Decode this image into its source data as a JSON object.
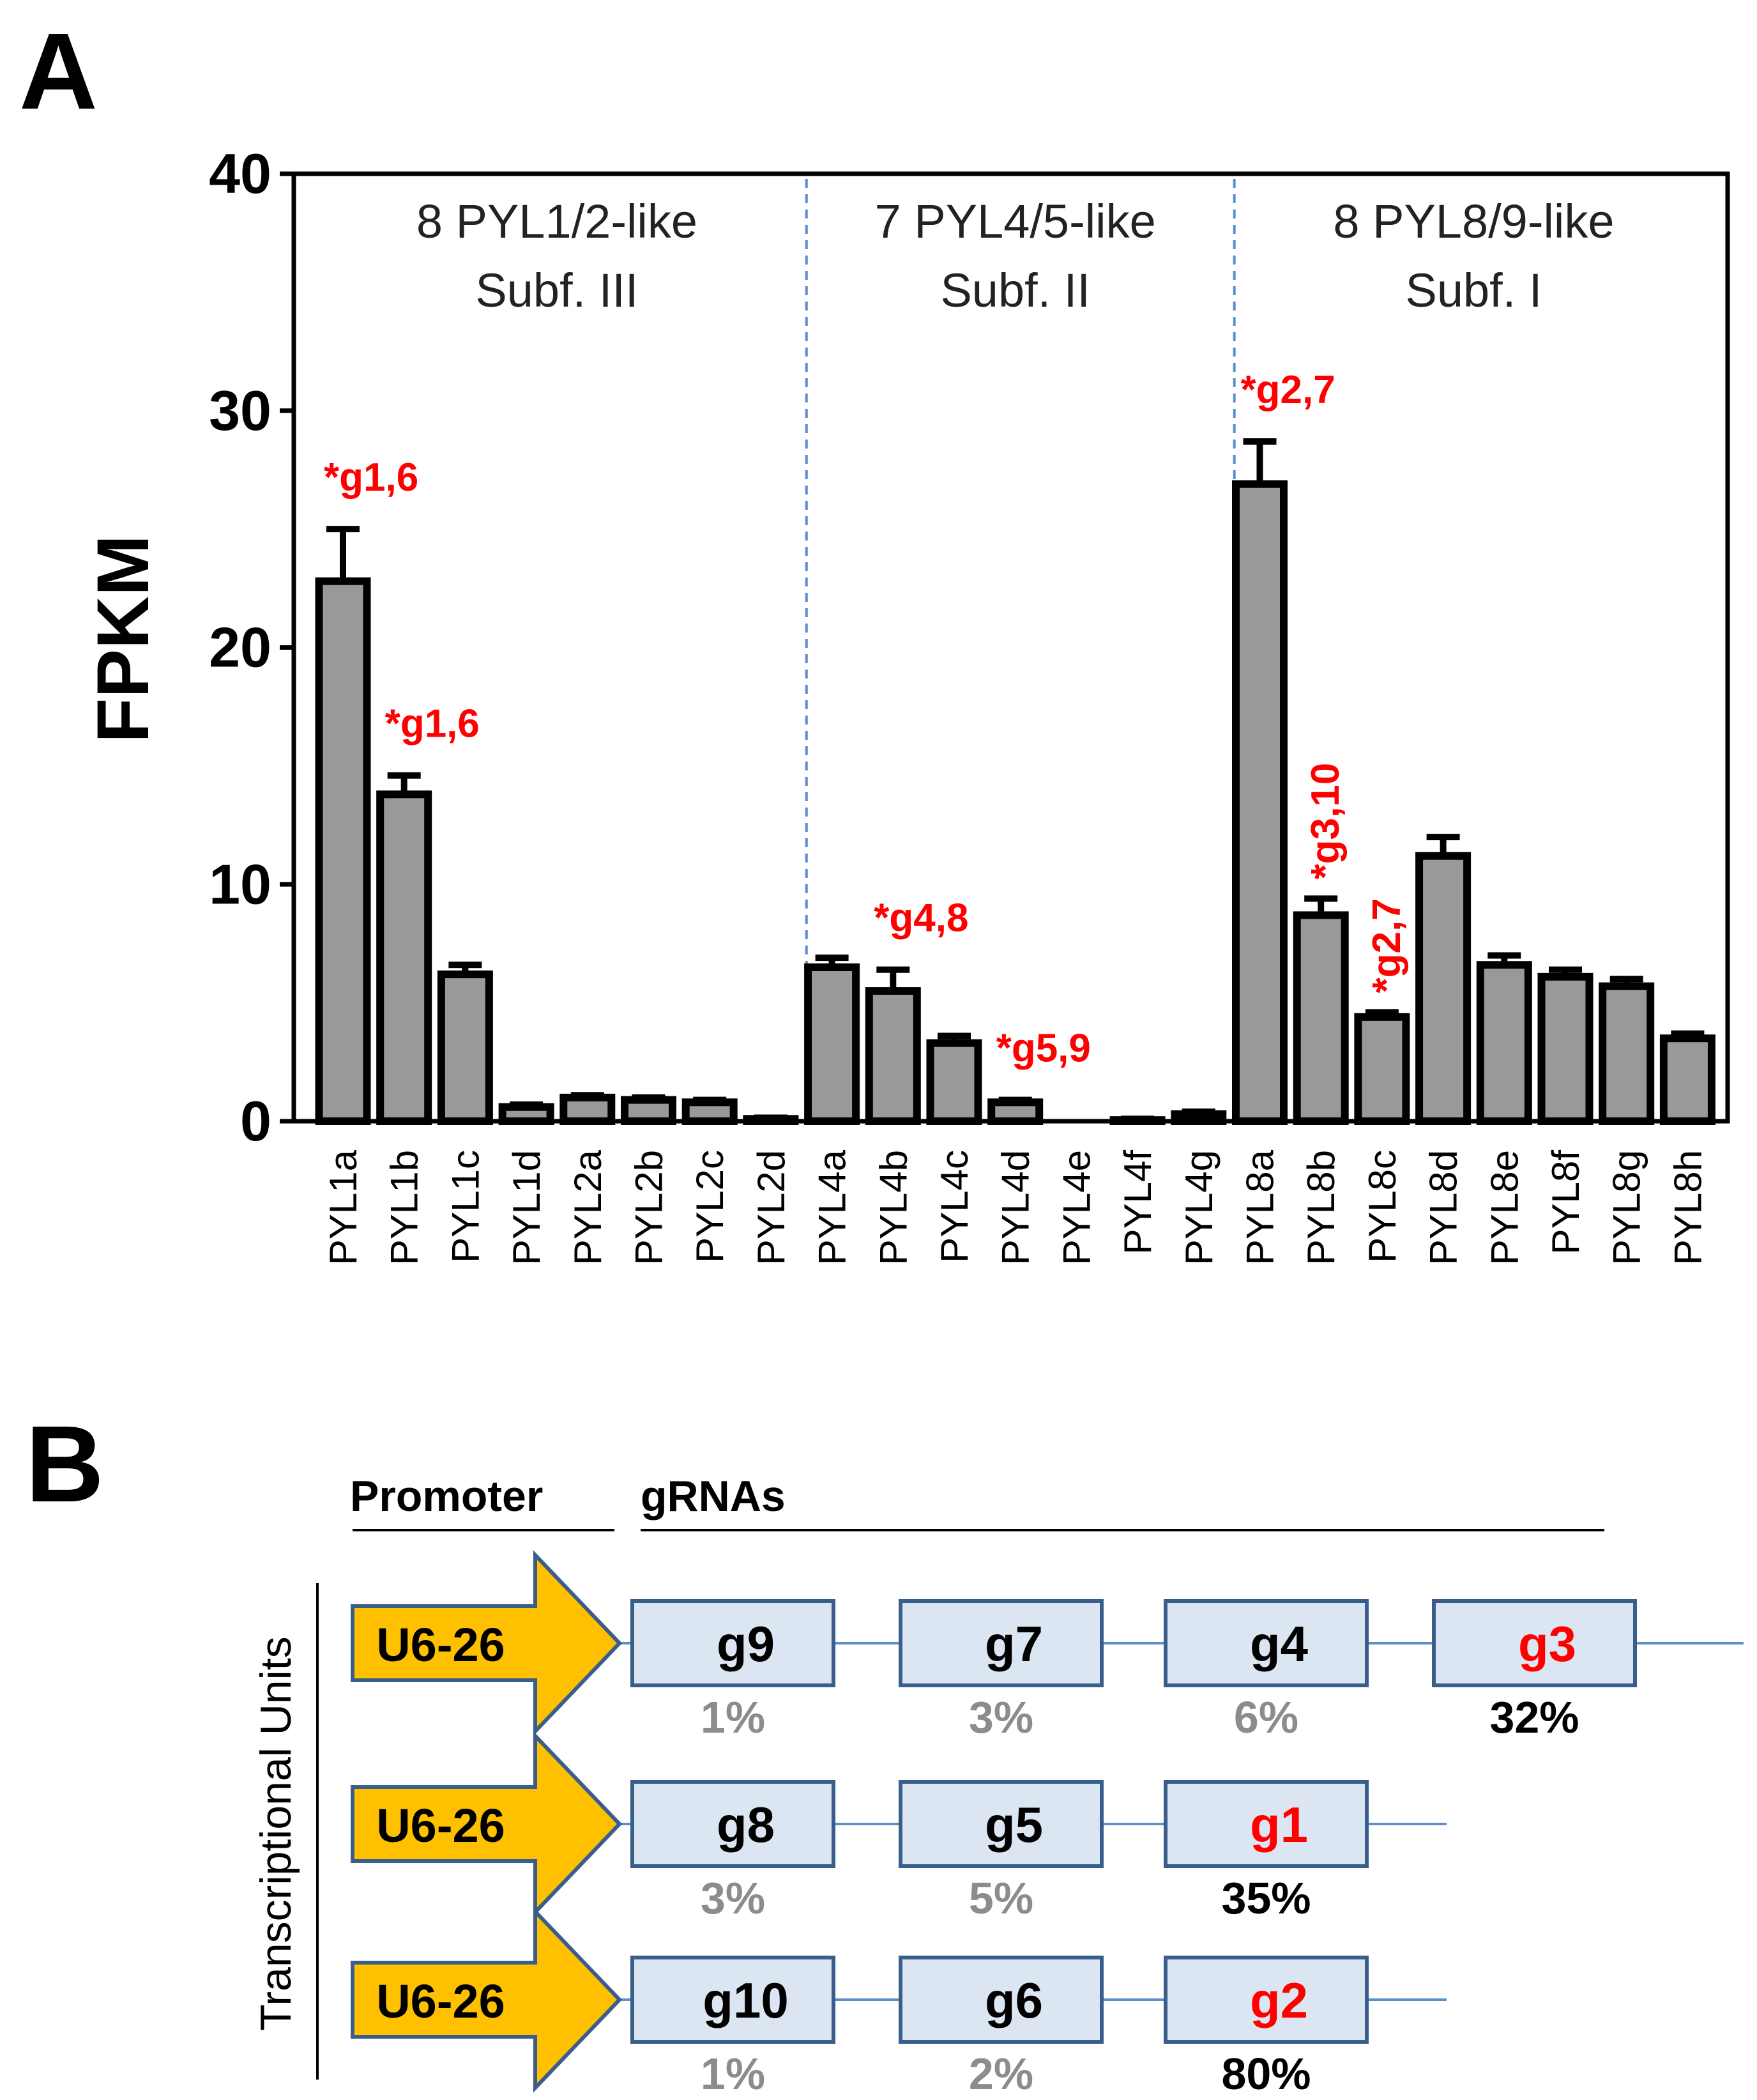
{
  "panel_a": {
    "label": "A"
  },
  "panel_b": {
    "label": "B",
    "promoter_header": "Promoter",
    "grnas_header": "gRNAs",
    "side_label": "Transcriptional Units",
    "units": [
      {
        "promoter": "U6-26",
        "guides": [
          {
            "name": "g9",
            "pct": "1%",
            "highlight": false
          },
          {
            "name": "g7",
            "pct": "3%",
            "highlight": false
          },
          {
            "name": "g4",
            "pct": "6%",
            "highlight": false
          },
          {
            "name": "g3",
            "pct": "32%",
            "highlight": true
          }
        ]
      },
      {
        "promoter": "U6-26",
        "guides": [
          {
            "name": "g8",
            "pct": "3%",
            "highlight": false
          },
          {
            "name": "g5",
            "pct": "5%",
            "highlight": false
          },
          {
            "name": "g1",
            "pct": "35%",
            "highlight": true
          }
        ]
      },
      {
        "promoter": "U6-26",
        "guides": [
          {
            "name": "g10",
            "pct": "1%",
            "highlight": false
          },
          {
            "name": "g6",
            "pct": "2%",
            "highlight": false
          },
          {
            "name": "g2",
            "pct": "80%",
            "highlight": true
          }
        ]
      }
    ]
  },
  "colors": {
    "bar": "#999999",
    "annotation": "#ff0000",
    "divider": "#5b8fc9",
    "promoter_fill": "#ffc000",
    "promoter_stroke": "#3a5e8c",
    "guide_fill": "#dce6f2",
    "guide_stroke": "#3a5e8c",
    "connector": "#5b8fc9",
    "pct_gray": "#8c8c8c"
  },
  "chart_data": {
    "type": "bar",
    "title": "",
    "xlabel": "",
    "ylabel": "FPKM",
    "ylim": [
      0,
      40
    ],
    "yticks": [
      0,
      10,
      20,
      30,
      40
    ],
    "categories": [
      "PYL1a",
      "PYL1b",
      "PYL1c",
      "PYL1d",
      "PYL2a",
      "PYL2b",
      "PYL2c",
      "PYL2d",
      "PYL4a",
      "PYL4b",
      "PYL4c",
      "PYL4d",
      "PYL4e",
      "PYL4f",
      "PYL4g",
      "PYL8a",
      "PYL8b",
      "PYL8c",
      "PYL8d",
      "PYL8e",
      "PYL8f",
      "PYL8g",
      "PYL8h"
    ],
    "values": [
      22.8,
      13.8,
      6.2,
      0.6,
      1.0,
      0.9,
      0.8,
      0.1,
      6.5,
      5.5,
      3.3,
      0.8,
      0.0,
      0.05,
      0.3,
      26.9,
      8.7,
      4.4,
      11.2,
      6.6,
      6.1,
      5.7,
      3.5
    ],
    "errors": [
      2.2,
      0.8,
      0.4,
      0.1,
      0.1,
      0.1,
      0.1,
      0.05,
      0.4,
      0.9,
      0.3,
      0.1,
      0.0,
      0.05,
      0.1,
      1.8,
      0.7,
      0.2,
      0.8,
      0.4,
      0.3,
      0.3,
      0.2
    ],
    "groups": [
      {
        "line1": "8 PYL1/2-like",
        "line2": "Subf. III",
        "start": 0,
        "end": 7
      },
      {
        "line1": "7 PYL4/5-like",
        "line2": "Subf. II",
        "start": 8,
        "end": 14
      },
      {
        "line1": "8 PYL8/9-like",
        "line2": "Subf. I",
        "start": 15,
        "end": 22
      }
    ],
    "annotations": [
      {
        "index": 0,
        "text": "*g1,6",
        "rotated": false
      },
      {
        "index": 1,
        "text": "*g1,6",
        "rotated": false
      },
      {
        "index": 9,
        "text": "*g4,8",
        "rotated": false
      },
      {
        "index": 11,
        "text": "*g5,9",
        "rotated": false
      },
      {
        "index": 15,
        "text": "*g2,7",
        "rotated": false
      },
      {
        "index": 16,
        "text": "*g3,10",
        "rotated": true
      },
      {
        "index": 17,
        "text": "*g2,7",
        "rotated": true
      }
    ]
  }
}
